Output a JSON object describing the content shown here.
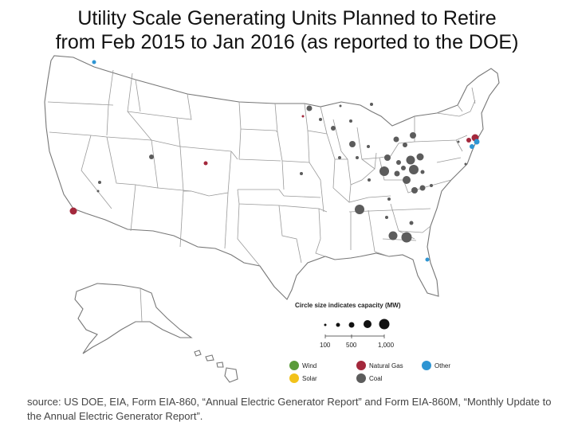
{
  "title": {
    "line1": "Utility Scale Generating Units Planned to Retire",
    "line2": "from Feb 2015 to Jan 2016 (as reported to the DOE)"
  },
  "legend": {
    "size_title": "Circle size indicates capacity (MW)",
    "size_ticks": [
      {
        "mw": 100,
        "label": "100"
      },
      {
        "mw": 500,
        "label": "500"
      },
      {
        "mw": 1000,
        "label": "1,000"
      }
    ],
    "categories": [
      {
        "key": "wind",
        "label": "Wind",
        "color": "#5a9b3a"
      },
      {
        "key": "natural_gas",
        "label": "Natural Gas",
        "color": "#a3283c"
      },
      {
        "key": "other",
        "label": "Other",
        "color": "#2e95d3"
      },
      {
        "key": "solar",
        "label": "Solar",
        "color": "#f2c21a"
      },
      {
        "key": "coal",
        "label": "Coal",
        "color": "#5c5c5c"
      }
    ]
  },
  "source": "source: US DOE, EIA, Form EIA-860, “Annual Electric Generator Report” and Form EIA-860M, “Monthly Update to the Annual Electric Generator Report”."
}
